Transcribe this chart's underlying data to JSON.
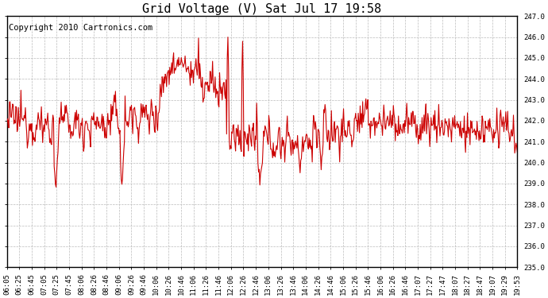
{
  "title": "Grid Voltage (V) Sat Jul 17 19:58",
  "copyright_text": "Copyright 2010 Cartronics.com",
  "line_color": "#cc0000",
  "bg_color": "#ffffff",
  "plot_bg_color": "#ffffff",
  "grid_color": "#bbbbbb",
  "ylim": [
    235.0,
    247.0
  ],
  "ytick_step": 1.0,
  "x_labels": [
    "06:05",
    "06:25",
    "06:45",
    "07:05",
    "07:25",
    "07:45",
    "08:06",
    "08:26",
    "08:46",
    "09:06",
    "09:26",
    "09:46",
    "10:06",
    "10:26",
    "10:46",
    "11:06",
    "11:26",
    "11:46",
    "12:06",
    "12:26",
    "12:46",
    "13:06",
    "13:26",
    "13:46",
    "14:06",
    "14:26",
    "14:46",
    "15:06",
    "15:26",
    "15:46",
    "16:06",
    "16:26",
    "16:46",
    "17:07",
    "17:27",
    "17:47",
    "18:07",
    "18:27",
    "18:47",
    "19:07",
    "19:29",
    "19:53"
  ],
  "title_fontsize": 11,
  "copyright_fontsize": 7.5,
  "tick_fontsize": 6.5,
  "line_width": 0.8
}
